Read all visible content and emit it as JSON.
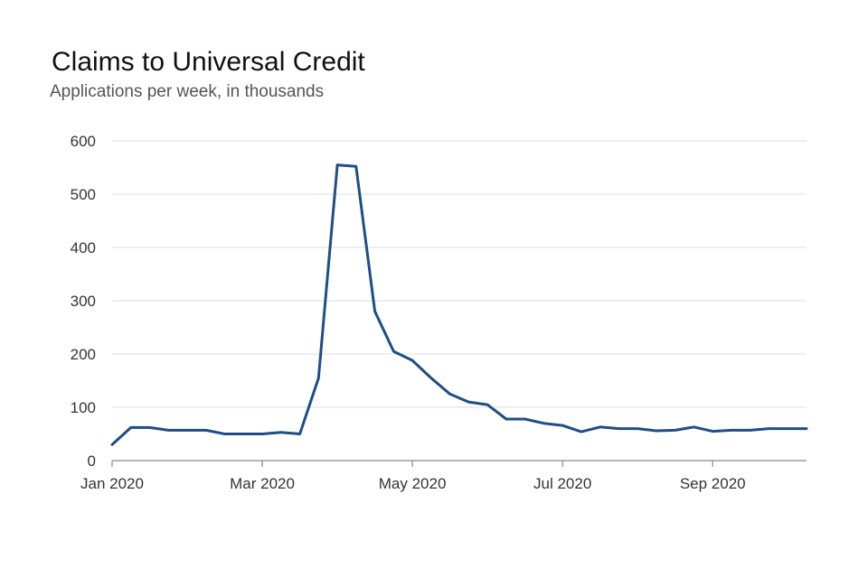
{
  "chart_data": {
    "type": "line",
    "title": "Claims to Universal Credit",
    "subtitle": "Applications per week, in thousands",
    "xlabel": "",
    "ylabel": "",
    "ylim": [
      0,
      600
    ],
    "yticks": [
      "0",
      "100",
      "200",
      "300",
      "400",
      "500",
      "600"
    ],
    "yticks_values": [
      0,
      100,
      200,
      300,
      400,
      500,
      600
    ],
    "xticks": [
      "Jan 2020",
      "Mar 2020",
      "May 2020",
      "Jul 2020",
      "Sep 2020"
    ],
    "xticks_week_index": [
      0,
      8,
      16,
      24,
      32
    ],
    "grid": true,
    "color": "#1f4e85",
    "series": [
      {
        "name": "Claims",
        "x_week_index": [
          0,
          1,
          2,
          3,
          4,
          5,
          6,
          7,
          8,
          9,
          10,
          11,
          12,
          13,
          14,
          15,
          16,
          17,
          18,
          19,
          20,
          21,
          22,
          23,
          24,
          25,
          26,
          27,
          28,
          29,
          30,
          31,
          32,
          33,
          34,
          35,
          36,
          37
        ],
        "values": [
          30,
          62,
          62,
          57,
          57,
          57,
          50,
          50,
          50,
          53,
          50,
          155,
          555,
          552,
          280,
          205,
          188,
          155,
          125,
          110,
          105,
          78,
          78,
          70,
          66,
          54,
          63,
          60,
          60,
          56,
          57,
          63,
          55,
          57,
          57,
          60,
          60,
          60
        ]
      }
    ]
  }
}
